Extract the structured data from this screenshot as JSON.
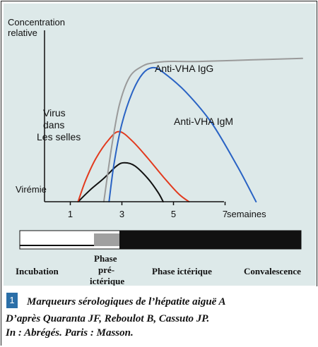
{
  "figure_number": "1",
  "caption": {
    "line1": "Marqueurs sérologiques de l’hépatite aiguë A",
    "line2": "D’après  Quaranta JF, Reboulot B, Cassuto JP.",
    "line3": "In :  Abrégés. Paris : Masson."
  },
  "phases": {
    "incubation": "Incubation",
    "preicteric": [
      "Phase",
      "pré-",
      "ictérique"
    ],
    "icteric": "Phase ictérique",
    "convalescence": "Convalescence"
  },
  "colors": {
    "background": "#dde9e9",
    "igg": "#9a9a9a",
    "igm": "#2a63c4",
    "virus_selles": "#e23a1e",
    "viremie": "#111111",
    "bar_gray": "#a0a0a0",
    "bar_black": "#111111",
    "fig_number_bg": "#2b6fa8"
  },
  "chart_data": {
    "type": "line",
    "ylabel": [
      "Concentration",
      "relative"
    ],
    "xlabel": "semaines",
    "xlim": [
      0,
      10
    ],
    "ylim": [
      0,
      1
    ],
    "xticks": [
      1,
      3,
      5,
      7
    ],
    "grid": false,
    "series": [
      {
        "name": "Virémie",
        "color": "#111111",
        "x": [
          1.3,
          1.8,
          2.3,
          2.8,
          3.1,
          3.5,
          4.0,
          4.4,
          4.6
        ],
        "y": [
          0.0,
          0.08,
          0.15,
          0.23,
          0.25,
          0.23,
          0.15,
          0.06,
          0.0
        ]
      },
      {
        "name": "Virus dans Les selles",
        "color": "#e23a1e",
        "x": [
          1.3,
          1.6,
          2.0,
          2.5,
          2.9,
          3.4,
          4.0,
          4.6,
          5.2,
          5.6
        ],
        "y": [
          0.0,
          0.14,
          0.28,
          0.4,
          0.45,
          0.39,
          0.28,
          0.16,
          0.05,
          0.0
        ]
      },
      {
        "name": "Anti-VHA IgM",
        "color": "#2a63c4",
        "x": [
          2.5,
          2.7,
          3.0,
          3.4,
          3.8,
          4.2,
          4.6,
          5.5,
          6.5,
          7.5,
          8.2
        ],
        "y": [
          0.0,
          0.25,
          0.5,
          0.7,
          0.82,
          0.86,
          0.83,
          0.7,
          0.5,
          0.22,
          0.0
        ]
      },
      {
        "name": "Anti-VHA IgG",
        "color": "#9a9a9a",
        "x": [
          2.3,
          2.6,
          2.9,
          3.3,
          3.8,
          4.2,
          4.8,
          6.0,
          8.0,
          10.0
        ],
        "y": [
          0.0,
          0.35,
          0.62,
          0.8,
          0.87,
          0.89,
          0.9,
          0.9,
          0.91,
          0.92
        ]
      }
    ]
  }
}
